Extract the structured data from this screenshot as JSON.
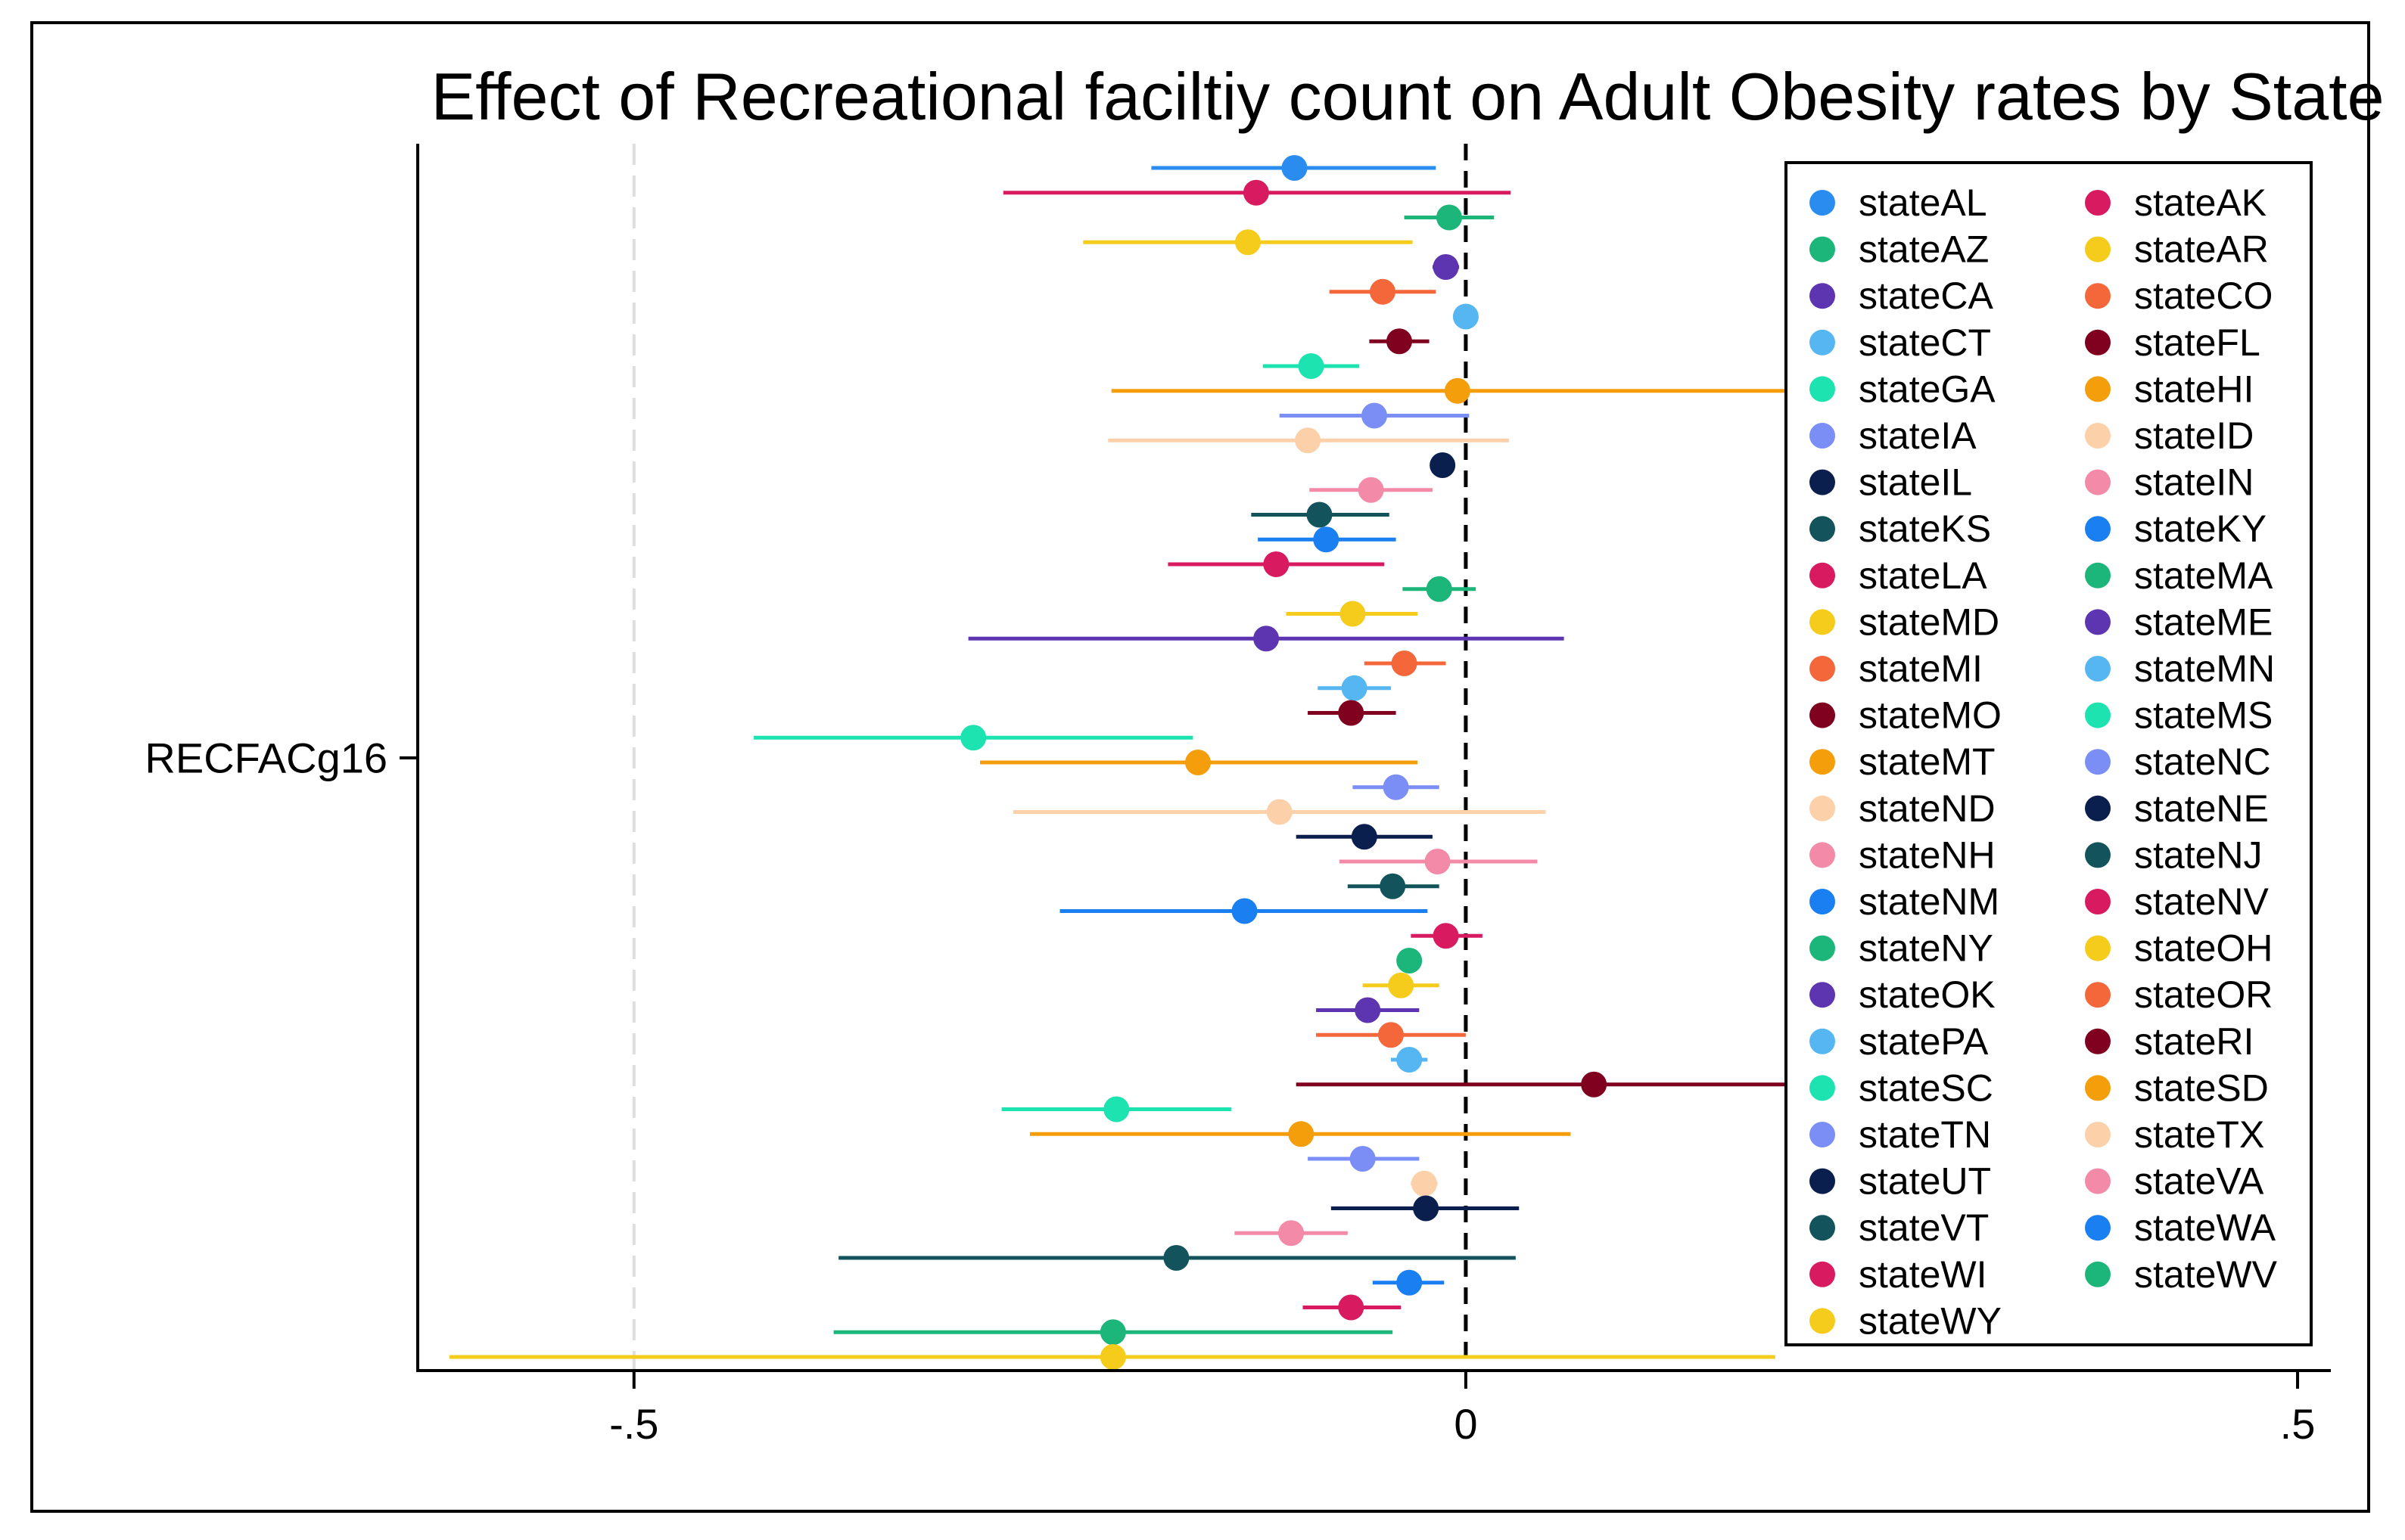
{
  "chart_data": {
    "type": "coefplot",
    "title": "Effect of Recreational faciltiy count on Adult Obesity rates by State",
    "ylabel_category": "RECFACg16",
    "xlim": [
      -0.63,
      0.52
    ],
    "x_ticks": [
      -0.5,
      0,
      0.5
    ],
    "x_tick_labels": [
      "-.5",
      "0",
      ".5"
    ],
    "reference_line": 0,
    "grid_line": -0.5,
    "legend_position": "top-right",
    "series": [
      {
        "name": "stateAL",
        "color": "#2b8cf0",
        "estimate": -0.103,
        "ci": [
          -0.189,
          -0.018
        ]
      },
      {
        "name": "stateAK",
        "color": "#d81b60",
        "estimate": -0.126,
        "ci": [
          -0.278,
          0.027
        ]
      },
      {
        "name": "stateAZ",
        "color": "#1db67a",
        "estimate": -0.01,
        "ci": [
          -0.037,
          0.017
        ]
      },
      {
        "name": "stateAR",
        "color": "#f5cc1b",
        "estimate": -0.131,
        "ci": [
          -0.23,
          -0.032
        ]
      },
      {
        "name": "stateCA",
        "color": "#5e35b1",
        "estimate": -0.012,
        "ci": [
          -0.02,
          -0.004
        ]
      },
      {
        "name": "stateCO",
        "color": "#f4673a",
        "estimate": -0.05,
        "ci": [
          -0.082,
          -0.018
        ]
      },
      {
        "name": "stateCT",
        "color": "#55b6f2",
        "estimate": 0.0,
        "ci": [
          -0.004,
          0.004
        ]
      },
      {
        "name": "stateFL",
        "color": "#800020",
        "estimate": -0.04,
        "ci": [
          -0.058,
          -0.022
        ]
      },
      {
        "name": "stateGA",
        "color": "#1de3b0",
        "estimate": -0.093,
        "ci": [
          -0.122,
          -0.064
        ]
      },
      {
        "name": "stateHI",
        "color": "#f59e0b",
        "estimate": -0.005,
        "ci": [
          -0.213,
          0.193
        ]
      },
      {
        "name": "stateIA",
        "color": "#7b8ef5",
        "estimate": -0.055,
        "ci": [
          -0.112,
          0.002
        ]
      },
      {
        "name": "stateID",
        "color": "#fcd0a8",
        "estimate": -0.095,
        "ci": [
          -0.215,
          0.026
        ]
      },
      {
        "name": "stateIL",
        "color": "#0b1f4e",
        "estimate": -0.014,
        "ci": [
          -0.02,
          -0.008
        ]
      },
      {
        "name": "stateIN",
        "color": "#f38ba8",
        "estimate": -0.057,
        "ci": [
          -0.094,
          -0.02
        ]
      },
      {
        "name": "stateKS",
        "color": "#13545c",
        "estimate": -0.088,
        "ci": [
          -0.129,
          -0.046
        ]
      },
      {
        "name": "stateKY",
        "color": "#1a7ff0",
        "estimate": -0.084,
        "ci": [
          -0.125,
          -0.042
        ]
      },
      {
        "name": "stateLA",
        "color": "#d81b60",
        "estimate": -0.114,
        "ci": [
          -0.179,
          -0.049
        ]
      },
      {
        "name": "stateMA",
        "color": "#1db67a",
        "estimate": -0.016,
        "ci": [
          -0.038,
          0.006
        ]
      },
      {
        "name": "stateMD",
        "color": "#f5cc1b",
        "estimate": -0.068,
        "ci": [
          -0.108,
          -0.029
        ]
      },
      {
        "name": "stateME",
        "color": "#5e35b1",
        "estimate": -0.12,
        "ci": [
          -0.299,
          0.059
        ]
      },
      {
        "name": "stateMI",
        "color": "#f4673a",
        "estimate": -0.037,
        "ci": [
          -0.061,
          -0.012
        ]
      },
      {
        "name": "stateMN",
        "color": "#55b6f2",
        "estimate": -0.067,
        "ci": [
          -0.089,
          -0.045
        ]
      },
      {
        "name": "stateMO",
        "color": "#800020",
        "estimate": -0.069,
        "ci": [
          -0.095,
          -0.042
        ]
      },
      {
        "name": "stateMS",
        "color": "#1de3b0",
        "estimate": -0.296,
        "ci": [
          -0.428,
          -0.164
        ]
      },
      {
        "name": "stateMT",
        "color": "#f59e0b",
        "estimate": -0.161,
        "ci": [
          -0.292,
          -0.029
        ]
      },
      {
        "name": "stateNC",
        "color": "#7b8ef5",
        "estimate": -0.042,
        "ci": [
          -0.068,
          -0.016
        ]
      },
      {
        "name": "stateND",
        "color": "#fcd0a8",
        "estimate": -0.112,
        "ci": [
          -0.272,
          0.048
        ]
      },
      {
        "name": "stateNE",
        "color": "#0b1f4e",
        "estimate": -0.061,
        "ci": [
          -0.102,
          -0.02
        ]
      },
      {
        "name": "stateNH",
        "color": "#f38ba8",
        "estimate": -0.017,
        "ci": [
          -0.076,
          0.043
        ]
      },
      {
        "name": "stateNJ",
        "color": "#13545c",
        "estimate": -0.044,
        "ci": [
          -0.071,
          -0.016
        ]
      },
      {
        "name": "stateNM",
        "color": "#1a7ff0",
        "estimate": -0.133,
        "ci": [
          -0.244,
          -0.023
        ]
      },
      {
        "name": "stateNV",
        "color": "#d81b60",
        "estimate": -0.012,
        "ci": [
          -0.033,
          0.01
        ]
      },
      {
        "name": "stateNY",
        "color": "#1db67a",
        "estimate": -0.034,
        "ci": [
          -0.04,
          -0.028
        ]
      },
      {
        "name": "stateOH",
        "color": "#f5cc1b",
        "estimate": -0.039,
        "ci": [
          -0.062,
          -0.016
        ]
      },
      {
        "name": "stateOK",
        "color": "#5e35b1",
        "estimate": -0.059,
        "ci": [
          -0.09,
          -0.028
        ]
      },
      {
        "name": "stateOR",
        "color": "#f4673a",
        "estimate": -0.045,
        "ci": [
          -0.09,
          0.0
        ]
      },
      {
        "name": "statePA",
        "color": "#55b6f2",
        "estimate": -0.034,
        "ci": [
          -0.045,
          -0.023
        ]
      },
      {
        "name": "stateRI",
        "color": "#800020",
        "estimate": 0.077,
        "ci": [
          -0.102,
          0.256
        ]
      },
      {
        "name": "stateSC",
        "color": "#1de3b0",
        "estimate": -0.21,
        "ci": [
          -0.279,
          -0.141
        ]
      },
      {
        "name": "stateSD",
        "color": "#f59e0b",
        "estimate": -0.099,
        "ci": [
          -0.262,
          0.063
        ]
      },
      {
        "name": "stateTN",
        "color": "#7b8ef5",
        "estimate": -0.062,
        "ci": [
          -0.095,
          -0.028
        ]
      },
      {
        "name": "stateTX",
        "color": "#fcd0a8",
        "estimate": -0.025,
        "ci": [
          -0.033,
          -0.017
        ]
      },
      {
        "name": "stateUT",
        "color": "#0b1f4e",
        "estimate": -0.024,
        "ci": [
          -0.081,
          0.032
        ]
      },
      {
        "name": "stateVA",
        "color": "#f38ba8",
        "estimate": -0.105,
        "ci": [
          -0.139,
          -0.071
        ]
      },
      {
        "name": "stateVT",
        "color": "#13545c",
        "estimate": -0.174,
        "ci": [
          -0.377,
          0.03
        ]
      },
      {
        "name": "stateWA",
        "color": "#1a7ff0",
        "estimate": -0.034,
        "ci": [
          -0.056,
          -0.013
        ]
      },
      {
        "name": "stateWI",
        "color": "#d81b60",
        "estimate": -0.069,
        "ci": [
          -0.098,
          -0.039
        ]
      },
      {
        "name": "stateWV",
        "color": "#1db67a",
        "estimate": -0.212,
        "ci": [
          -0.38,
          -0.044
        ]
      },
      {
        "name": "stateWY",
        "color": "#f5cc1b",
        "estimate": -0.212,
        "ci": [
          -0.611,
          0.186
        ]
      }
    ]
  }
}
